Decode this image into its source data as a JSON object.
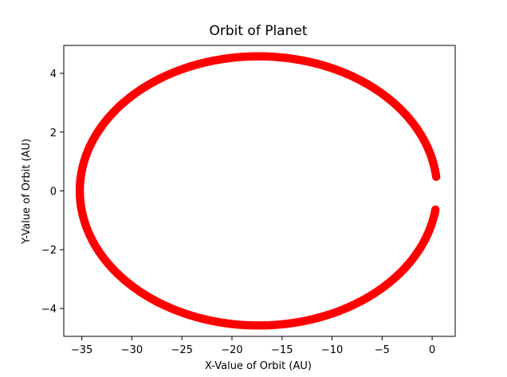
{
  "chart_data": {
    "type": "scatter",
    "title": "Orbit of Planet",
    "xlabel": "X-Value of Orbit (AU)",
    "ylabel": "Y-Value of Orbit (AU)",
    "xlim": [
      -36.8,
      2.3
    ],
    "ylim": [
      -4.95,
      4.95
    ],
    "xticks": [
      -35,
      -30,
      -25,
      -20,
      -15,
      -10,
      -5,
      0
    ],
    "xtick_labels": [
      "−35",
      "−30",
      "−25",
      "−20",
      "−15",
      "−10",
      "−5",
      "0"
    ],
    "yticks": [
      -4,
      -2,
      0,
      2,
      4
    ],
    "ytick_labels": [
      "−4",
      "−2",
      "0",
      "2",
      "4"
    ],
    "grid": false,
    "series": [
      {
        "marker": "circle",
        "color": "#ff0000",
        "orbit": {
          "center_x": -17.35,
          "center_y": 0.0,
          "semi_major_axis": 17.85,
          "semi_minor_axis": 4.58,
          "start_angle_deg": 6,
          "end_angle_deg": 352
        }
      }
    ]
  }
}
